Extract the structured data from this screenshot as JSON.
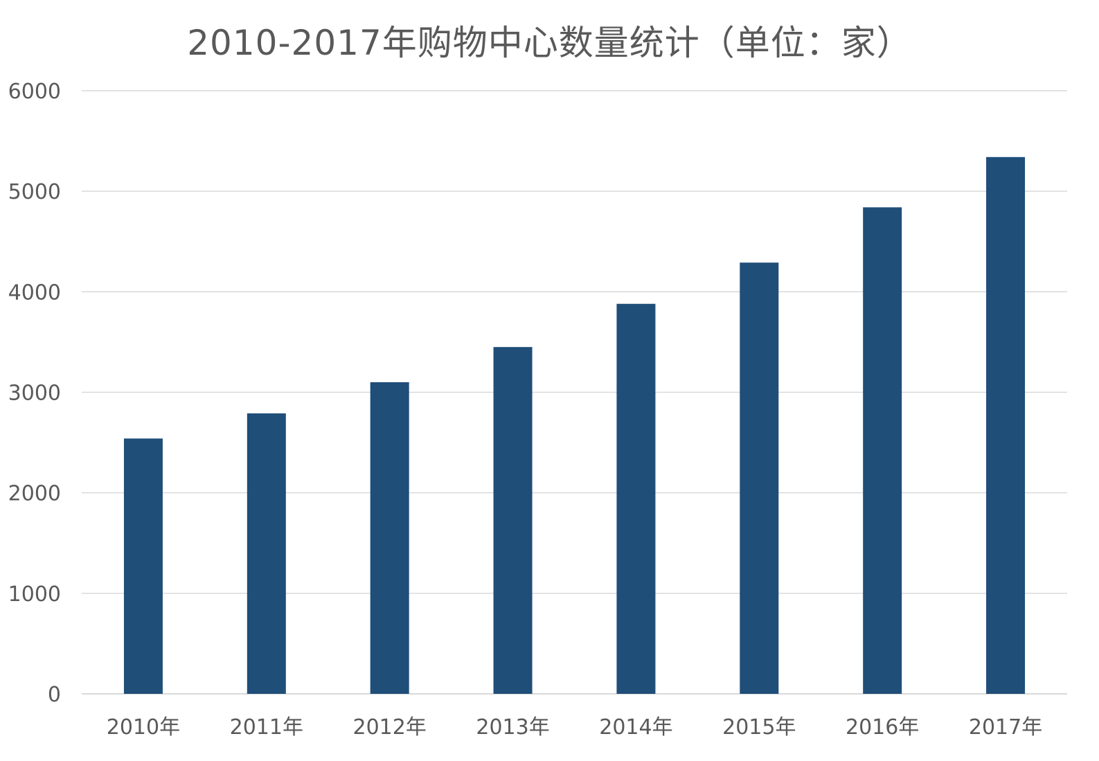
{
  "chart_data": {
    "type": "bar",
    "title": "2010-2017年购物中心数量统计（单位：家）",
    "categories": [
      "2010年",
      "2011年",
      "2012年",
      "2013年",
      "2014年",
      "2015年",
      "2016年",
      "2017年"
    ],
    "values": [
      2540,
      2790,
      3100,
      3450,
      3880,
      4290,
      4840,
      5340
    ],
    "yticks": [
      "0",
      "1000",
      "2000",
      "3000",
      "4000",
      "5000",
      "6000"
    ],
    "ylim": [
      0,
      6000
    ],
    "grid": true,
    "bar_color": "#1f4e79"
  }
}
